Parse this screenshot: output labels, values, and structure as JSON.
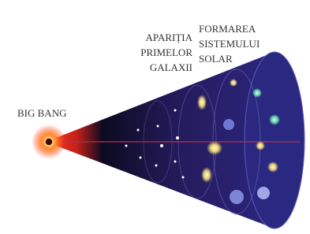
{
  "labels": {
    "big_bang": "BIG BANG",
    "galaxies": [
      "APARIȚIA",
      "PRIMELOR",
      "GALAXII"
    ],
    "solar_system": [
      "FORMAREA",
      "SISTEMULUI",
      "SOLAR"
    ]
  }
}
